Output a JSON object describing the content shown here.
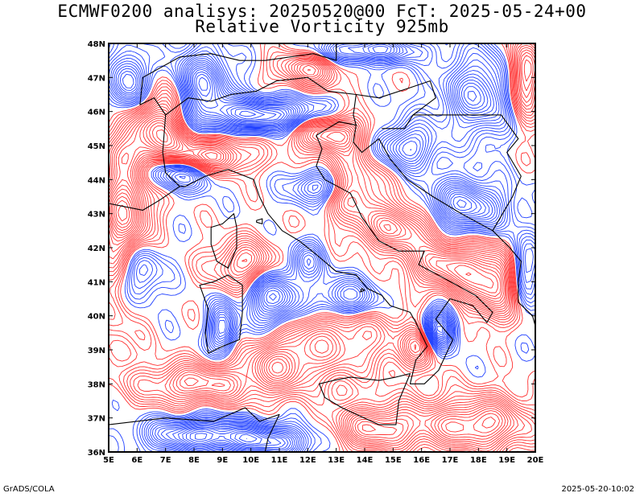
{
  "title_line1": "ECMWF0200 analisys: 20250520@00 FcT: 2025-05-24+00",
  "title_line2": "Relative Vorticity 925mb",
  "lat_labels": [
    "48N",
    "47N",
    "46N",
    "45N",
    "44N",
    "43N",
    "42N",
    "41N",
    "40N",
    "39N",
    "38N",
    "37N",
    "36N"
  ],
  "lon_labels": [
    "5E",
    "6E",
    "7E",
    "8E",
    "9E",
    "10E",
    "11E",
    "12E",
    "13E",
    "14E",
    "15E",
    "16E",
    "17E",
    "18E",
    "19E",
    "20E"
  ],
  "footer_left": "GrADS/COLA",
  "footer_right": "2025-05-20-10:02",
  "colors": {
    "positive_vorticity": "#ff3030",
    "negative_vorticity": "#2040ff",
    "coastline": "#000000",
    "frame": "#000000"
  },
  "map_extent": {
    "lon": [
      5,
      20
    ],
    "lat": [
      36,
      48
    ]
  }
}
